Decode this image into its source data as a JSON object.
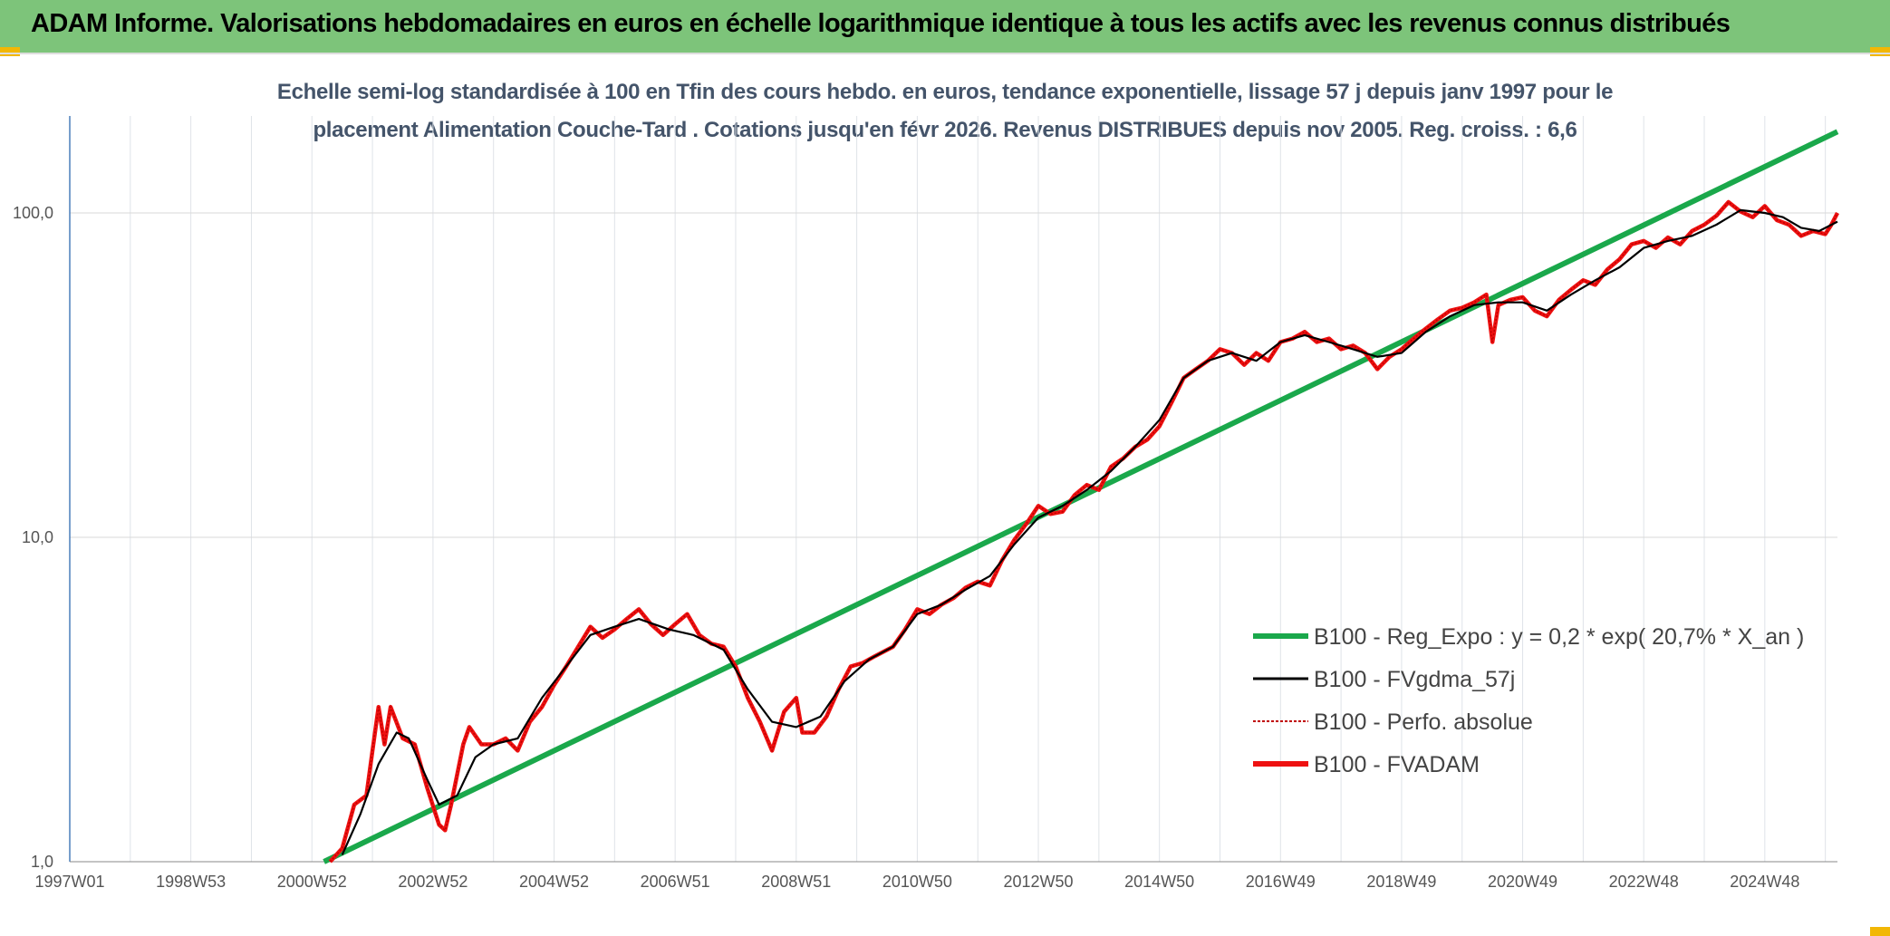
{
  "header": {
    "title": "ADAM Informe. Valorisations hebdomadaires en euros en échelle logarithmique identique à tous les actifs avec les revenus connus distribués"
  },
  "colors": {
    "header_bg": "#7dc47a",
    "accent_corner": "#f2b705",
    "reg_expo": "#1aa84b",
    "fvgdma": "#000000",
    "perfo": "#c00000",
    "fvadam": "#ee1111"
  },
  "chart_data": {
    "type": "line",
    "title_line1": "Echelle semi-log standardisée à 100 en Tfin des cours hebdo. en euros, tendance exponentielle, lissage 57 j depuis janv 1997 pour le",
    "title_line2": "placement Alimentation Couche-Tard . Cotations jusqu'en févr 2026. Revenus DISTRIBUES depuis nov 2005. Reg. croiss. : 6,6",
    "y_scale": "log",
    "ylim": [
      1,
      200
    ],
    "y_ticks": [
      {
        "value": 1,
        "label": "1,0"
      },
      {
        "value": 10,
        "label": "10,0"
      },
      {
        "value": 100,
        "label": "100,0"
      }
    ],
    "xlim": [
      1997.0,
      2026.2
    ],
    "x_ticks": [
      {
        "value": 1997.0,
        "label": "1997W01"
      },
      {
        "value": 1999.0,
        "label": "1998W53"
      },
      {
        "value": 2001.0,
        "label": "2000W52"
      },
      {
        "value": 2003.0,
        "label": "2002W52"
      },
      {
        "value": 2005.0,
        "label": "2004W52"
      },
      {
        "value": 2007.0,
        "label": "2006W51"
      },
      {
        "value": 2009.0,
        "label": "2008W51"
      },
      {
        "value": 2011.0,
        "label": "2010W50"
      },
      {
        "value": 2013.0,
        "label": "2012W50"
      },
      {
        "value": 2015.0,
        "label": "2014W50"
      },
      {
        "value": 2017.0,
        "label": "2016W49"
      },
      {
        "value": 2019.0,
        "label": "2018W49"
      },
      {
        "value": 2021.0,
        "label": "2020W49"
      },
      {
        "value": 2023.0,
        "label": "2022W48"
      },
      {
        "value": 2025.0,
        "label": "2024W48"
      }
    ],
    "grid": true,
    "legend_position": "right",
    "series": [
      {
        "name": "B100 - Reg_Expo : y = 0,2 * exp( 20,7% *  X_an )",
        "style": "solid-thick",
        "points": [
          [
            2001.2,
            1.0
          ],
          [
            2026.2,
            178
          ]
        ]
      },
      {
        "name": "B100 - FVgdma_57j",
        "style": "solid-thin",
        "points": [
          [
            2001.5,
            1.05
          ],
          [
            2001.8,
            1.4
          ],
          [
            2002.1,
            2.0
          ],
          [
            2002.4,
            2.5
          ],
          [
            2002.6,
            2.4
          ],
          [
            2002.9,
            1.8
          ],
          [
            2003.1,
            1.5
          ],
          [
            2003.4,
            1.6
          ],
          [
            2003.7,
            2.1
          ],
          [
            2004.0,
            2.3
          ],
          [
            2004.4,
            2.4
          ],
          [
            2004.8,
            3.2
          ],
          [
            2005.2,
            4.0
          ],
          [
            2005.6,
            5.0
          ],
          [
            2006.0,
            5.3
          ],
          [
            2006.4,
            5.6
          ],
          [
            2006.9,
            5.2
          ],
          [
            2007.3,
            5.0
          ],
          [
            2007.8,
            4.5
          ],
          [
            2008.2,
            3.4
          ],
          [
            2008.6,
            2.7
          ],
          [
            2009.0,
            2.6
          ],
          [
            2009.4,
            2.8
          ],
          [
            2009.8,
            3.6
          ],
          [
            2010.2,
            4.2
          ],
          [
            2010.6,
            4.6
          ],
          [
            2011.0,
            5.8
          ],
          [
            2011.4,
            6.2
          ],
          [
            2011.8,
            6.9
          ],
          [
            2012.2,
            7.6
          ],
          [
            2012.6,
            9.5
          ],
          [
            2013.0,
            11.5
          ],
          [
            2013.4,
            12.5
          ],
          [
            2013.8,
            14.0
          ],
          [
            2014.2,
            16.0
          ],
          [
            2014.6,
            19.0
          ],
          [
            2015.0,
            23.0
          ],
          [
            2015.4,
            31.0
          ],
          [
            2015.8,
            35.0
          ],
          [
            2016.2,
            37.0
          ],
          [
            2016.6,
            35.0
          ],
          [
            2017.0,
            40.0
          ],
          [
            2017.4,
            42.0
          ],
          [
            2017.8,
            40.0
          ],
          [
            2018.2,
            38.0
          ],
          [
            2018.6,
            36.0
          ],
          [
            2019.0,
            37.0
          ],
          [
            2019.4,
            43.0
          ],
          [
            2019.8,
            48.0
          ],
          [
            2020.2,
            52.0
          ],
          [
            2020.6,
            53.0
          ],
          [
            2021.0,
            53.0
          ],
          [
            2021.4,
            50.0
          ],
          [
            2021.8,
            56.0
          ],
          [
            2022.2,
            62.0
          ],
          [
            2022.6,
            68.0
          ],
          [
            2023.0,
            78.0
          ],
          [
            2023.4,
            82.0
          ],
          [
            2023.8,
            85.0
          ],
          [
            2024.2,
            92.0
          ],
          [
            2024.6,
            102.0
          ],
          [
            2025.0,
            100.0
          ],
          [
            2025.3,
            97.0
          ],
          [
            2025.6,
            90.0
          ],
          [
            2025.9,
            88.0
          ],
          [
            2026.2,
            94.0
          ]
        ]
      },
      {
        "name": "B100 - Perfo. absolue",
        "style": "dotted",
        "points": [
          [
            2001.3,
            1.0
          ],
          [
            2001.5,
            1.1
          ],
          [
            2001.7,
            1.5
          ],
          [
            2001.9,
            1.6
          ],
          [
            2002.0,
            2.2
          ],
          [
            2002.1,
            3.0
          ],
          [
            2002.2,
            2.3
          ],
          [
            2002.3,
            3.0
          ],
          [
            2002.5,
            2.4
          ],
          [
            2002.7,
            2.3
          ],
          [
            2002.9,
            1.7
          ],
          [
            2003.1,
            1.3
          ],
          [
            2003.2,
            1.25
          ],
          [
            2003.3,
            1.5
          ],
          [
            2003.5,
            2.3
          ],
          [
            2003.6,
            2.6
          ],
          [
            2003.8,
            2.3
          ],
          [
            2004.0,
            2.3
          ],
          [
            2004.2,
            2.4
          ],
          [
            2004.4,
            2.2
          ],
          [
            2004.6,
            2.7
          ],
          [
            2004.8,
            3.0
          ],
          [
            2005.0,
            3.5
          ],
          [
            2005.2,
            4.0
          ],
          [
            2005.4,
            4.6
          ],
          [
            2005.6,
            5.3
          ],
          [
            2005.8,
            4.9
          ],
          [
            2006.0,
            5.2
          ],
          [
            2006.2,
            5.6
          ],
          [
            2006.4,
            6.0
          ],
          [
            2006.6,
            5.4
          ],
          [
            2006.8,
            5.0
          ],
          [
            2007.0,
            5.4
          ],
          [
            2007.2,
            5.8
          ],
          [
            2007.4,
            5.0
          ],
          [
            2007.6,
            4.7
          ],
          [
            2007.8,
            4.6
          ],
          [
            2008.0,
            4.0
          ],
          [
            2008.2,
            3.2
          ],
          [
            2008.4,
            2.7
          ],
          [
            2008.6,
            2.2
          ],
          [
            2008.8,
            2.9
          ],
          [
            2009.0,
            3.2
          ],
          [
            2009.1,
            2.5
          ],
          [
            2009.3,
            2.5
          ],
          [
            2009.5,
            2.8
          ],
          [
            2009.7,
            3.4
          ],
          [
            2009.9,
            4.0
          ],
          [
            2010.1,
            4.1
          ],
          [
            2010.3,
            4.3
          ],
          [
            2010.6,
            4.6
          ],
          [
            2010.8,
            5.2
          ],
          [
            2011.0,
            6.0
          ],
          [
            2011.2,
            5.8
          ],
          [
            2011.4,
            6.2
          ],
          [
            2011.6,
            6.5
          ],
          [
            2011.8,
            7.0
          ],
          [
            2012.0,
            7.3
          ],
          [
            2012.2,
            7.1
          ],
          [
            2012.4,
            8.5
          ],
          [
            2012.6,
            9.8
          ],
          [
            2012.8,
            11.0
          ],
          [
            2013.0,
            12.5
          ],
          [
            2013.2,
            11.8
          ],
          [
            2013.4,
            12.0
          ],
          [
            2013.6,
            13.5
          ],
          [
            2013.8,
            14.5
          ],
          [
            2014.0,
            14.0
          ],
          [
            2014.2,
            16.5
          ],
          [
            2014.4,
            17.5
          ],
          [
            2014.6,
            19.0
          ],
          [
            2014.8,
            20.0
          ],
          [
            2015.0,
            22.0
          ],
          [
            2015.2,
            26.0
          ],
          [
            2015.4,
            31.0
          ],
          [
            2015.6,
            33.0
          ],
          [
            2015.8,
            35.0
          ],
          [
            2016.0,
            38.0
          ],
          [
            2016.2,
            37.0
          ],
          [
            2016.4,
            34.0
          ],
          [
            2016.6,
            37.0
          ],
          [
            2016.8,
            35.0
          ],
          [
            2017.0,
            40.0
          ],
          [
            2017.2,
            41.0
          ],
          [
            2017.4,
            43.0
          ],
          [
            2017.6,
            40.0
          ],
          [
            2017.8,
            41.0
          ],
          [
            2018.0,
            38.0
          ],
          [
            2018.2,
            39.0
          ],
          [
            2018.4,
            37.0
          ],
          [
            2018.6,
            33.0
          ],
          [
            2018.8,
            36.0
          ],
          [
            2019.0,
            38.0
          ],
          [
            2019.2,
            41.0
          ],
          [
            2019.4,
            44.0
          ],
          [
            2019.6,
            47.0
          ],
          [
            2019.8,
            50.0
          ],
          [
            2020.0,
            51.0
          ],
          [
            2020.2,
            53.0
          ],
          [
            2020.4,
            56.0
          ],
          [
            2020.5,
            40.0
          ],
          [
            2020.6,
            52.0
          ],
          [
            2020.8,
            54.0
          ],
          [
            2021.0,
            55.0
          ],
          [
            2021.2,
            50.0
          ],
          [
            2021.4,
            48.0
          ],
          [
            2021.6,
            54.0
          ],
          [
            2021.8,
            58.0
          ],
          [
            2022.0,
            62.0
          ],
          [
            2022.2,
            60.0
          ],
          [
            2022.4,
            67.0
          ],
          [
            2022.6,
            72.0
          ],
          [
            2022.8,
            80.0
          ],
          [
            2023.0,
            82.0
          ],
          [
            2023.2,
            78.0
          ],
          [
            2023.4,
            84.0
          ],
          [
            2023.6,
            80.0
          ],
          [
            2023.8,
            88.0
          ],
          [
            2024.0,
            92.0
          ],
          [
            2024.2,
            98.0
          ],
          [
            2024.4,
            108.0
          ],
          [
            2024.6,
            101.0
          ],
          [
            2024.8,
            97.0
          ],
          [
            2025.0,
            105.0
          ],
          [
            2025.2,
            95.0
          ],
          [
            2025.4,
            92.0
          ],
          [
            2025.6,
            85.0
          ],
          [
            2025.8,
            88.0
          ],
          [
            2026.0,
            86.0
          ],
          [
            2026.1,
            92.0
          ],
          [
            2026.2,
            100.0
          ]
        ]
      },
      {
        "name": "B100 - FVADAM",
        "style": "solid-red",
        "points": "same-as-perfo"
      }
    ]
  }
}
